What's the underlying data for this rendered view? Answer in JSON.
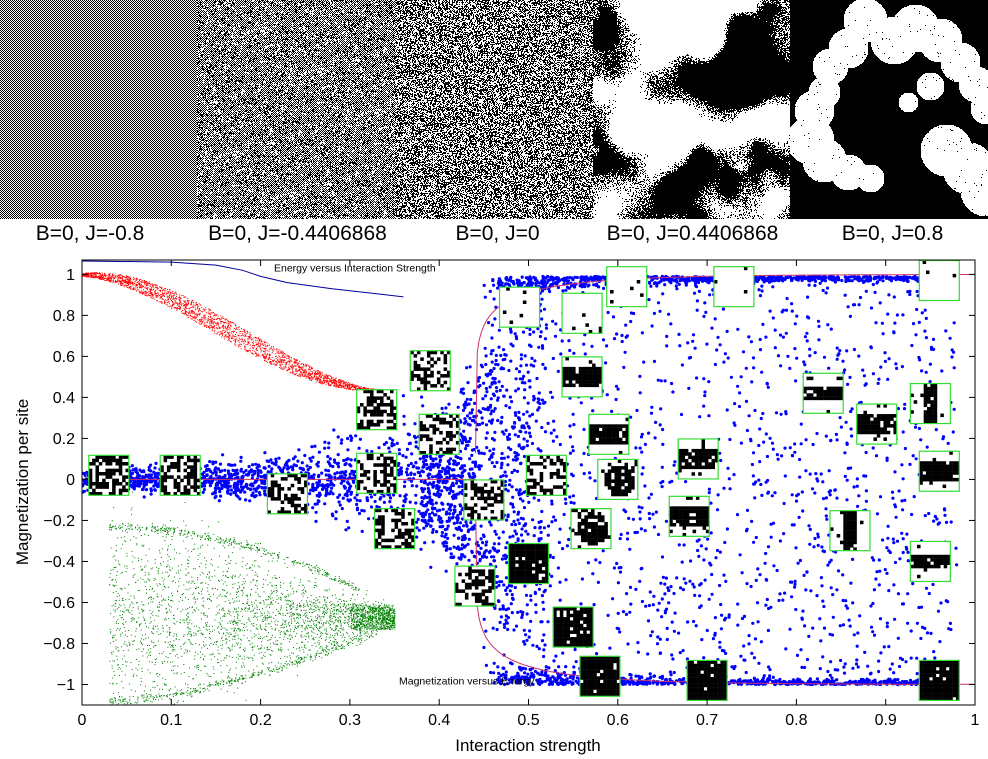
{
  "snapshots": [
    {
      "caption": "B=0, J=-0.8",
      "pattern": "checkerboard"
    },
    {
      "caption": "B=0, J=-0.4406868",
      "pattern": "noise-antiferro"
    },
    {
      "caption": "B=0, J=0",
      "pattern": "noise"
    },
    {
      "caption": "B=0, J=0.4406868",
      "pattern": "critical-clusters"
    },
    {
      "caption": "B=0, J=0.8",
      "pattern": "domains"
    }
  ],
  "chart_data": {
    "type": "scatter",
    "title": "",
    "xlabel": "Interaction strength",
    "ylabel": "Magnetization per site",
    "xlim": [
      0,
      1
    ],
    "ylim": [
      -1.1,
      1.07
    ],
    "x_ticks": [
      0,
      0.1,
      0.2,
      0.3,
      0.4,
      0.5,
      0.6,
      0.7,
      0.8,
      0.9,
      1
    ],
    "x_tick_labels": [
      "0",
      "0.1",
      "0.2",
      "0.3",
      "0.4",
      "0.5",
      "0.6",
      "0.7",
      "0.8",
      "0.9",
      "1"
    ],
    "y_ticks": [
      1,
      0.8,
      0.6,
      0.4,
      0.2,
      0,
      -0.2,
      -0.4,
      -0.6,
      -0.8,
      -1
    ],
    "y_tick_labels": [
      "1",
      "0.8",
      "0.6",
      "0.4",
      "0.2",
      "0",
      "−0.2",
      "−0.4",
      "−0.6",
      "−0.8",
      "−1"
    ],
    "critical_x": 0.4406868,
    "grid": false,
    "series": [
      {
        "color": "#0000ff",
        "description": "simulation samples; near 0 for J below 0.44, splitting to +1 and -1 above"
      },
      {
        "color": "#ff0000",
        "description": "red dense band from (0,1) down to (0.35,0.43)"
      },
      {
        "color": "#008000",
        "description": "green fan from x 0.03 to 0.35, converging near -0.67"
      },
      {
        "color": "#cc3366",
        "description": "thin curve, spontaneous magnetization branches"
      }
    ],
    "annotations": [
      {
        "text": "Energy versus Interaction Strength",
        "x": 0.215,
        "y": 1.015
      },
      {
        "text": "Magnetization versus Energy",
        "x": 0.355,
        "y": -1.0
      }
    ],
    "energy_curve": [
      {
        "x": 0.0,
        "y": 1.065
      },
      {
        "x": 0.1,
        "y": 1.06
      },
      {
        "x": 0.15,
        "y": 1.045
      },
      {
        "x": 0.18,
        "y": 1.02
      },
      {
        "x": 0.2,
        "y": 0.99
      },
      {
        "x": 0.23,
        "y": 0.96
      },
      {
        "x": 0.28,
        "y": 0.93
      },
      {
        "x": 0.33,
        "y": 0.905
      },
      {
        "x": 0.36,
        "y": 0.89
      }
    ],
    "inset_lattices": [
      {
        "x": 0.03,
        "y": 0.02,
        "kind": "random"
      },
      {
        "x": 0.11,
        "y": 0.02,
        "kind": "random"
      },
      {
        "x": 0.23,
        "y": -0.07,
        "kind": "mixed"
      },
      {
        "x": 0.33,
        "y": 0.34,
        "kind": "random"
      },
      {
        "x": 0.33,
        "y": 0.03,
        "kind": "mixed"
      },
      {
        "x": 0.35,
        "y": -0.24,
        "kind": "mixed"
      },
      {
        "x": 0.39,
        "y": 0.53,
        "kind": "mixed"
      },
      {
        "x": 0.4,
        "y": 0.22,
        "kind": "mixed"
      },
      {
        "x": 0.45,
        "y": -0.1,
        "kind": "mixed"
      },
      {
        "x": 0.44,
        "y": -0.52,
        "kind": "mixed"
      },
      {
        "x": 0.49,
        "y": 0.84,
        "kind": "sparse-white"
      },
      {
        "x": 0.52,
        "y": 0.02,
        "kind": "mixed"
      },
      {
        "x": 0.5,
        "y": -0.41,
        "kind": "mostly-black"
      },
      {
        "x": 0.56,
        "y": 0.81,
        "kind": "sparse-white"
      },
      {
        "x": 0.56,
        "y": 0.5,
        "kind": "band-black"
      },
      {
        "x": 0.57,
        "y": -0.24,
        "kind": "blob-black"
      },
      {
        "x": 0.55,
        "y": -0.72,
        "kind": "mostly-black"
      },
      {
        "x": 0.59,
        "y": 0.22,
        "kind": "band-black"
      },
      {
        "x": 0.6,
        "y": 0.0,
        "kind": "blob-black"
      },
      {
        "x": 0.61,
        "y": 0.94,
        "kind": "sparse-white"
      },
      {
        "x": 0.58,
        "y": -0.96,
        "kind": "mostly-black"
      },
      {
        "x": 0.69,
        "y": 0.1,
        "kind": "band-black"
      },
      {
        "x": 0.68,
        "y": -0.18,
        "kind": "band-black"
      },
      {
        "x": 0.73,
        "y": 0.94,
        "kind": "white"
      },
      {
        "x": 0.7,
        "y": -0.98,
        "kind": "mostly-black"
      },
      {
        "x": 0.83,
        "y": 0.42,
        "kind": "stripe-h"
      },
      {
        "x": 0.86,
        "y": -0.25,
        "kind": "stripe-v"
      },
      {
        "x": 0.89,
        "y": 0.27,
        "kind": "band-black"
      },
      {
        "x": 0.95,
        "y": 0.37,
        "kind": "stripe-v"
      },
      {
        "x": 0.96,
        "y": 0.97,
        "kind": "white"
      },
      {
        "x": 0.96,
        "y": 0.04,
        "kind": "band-black"
      },
      {
        "x": 0.95,
        "y": -0.4,
        "kind": "stripe-h"
      },
      {
        "x": 0.96,
        "y": -0.98,
        "kind": "mostly-black"
      }
    ]
  }
}
